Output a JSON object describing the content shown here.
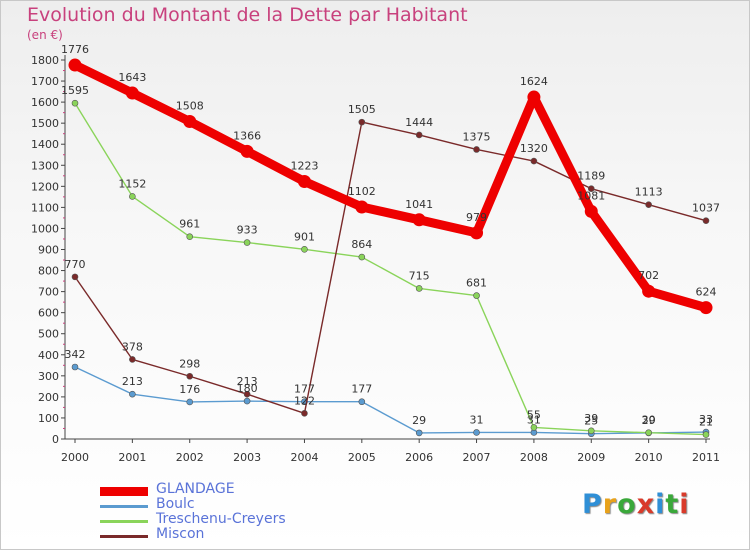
{
  "title": "Evolution du Montant de la Dette par Habitant",
  "unit": "(en €)",
  "logo": {
    "text": "Proxiti",
    "colors": [
      "#2f8fd6",
      "#e8a21b",
      "#3aa83a",
      "#d93a2a",
      "#2f8fd6",
      "#3aa83a",
      "#d93a2a"
    ]
  },
  "chart_data": {
    "type": "line",
    "title": "Evolution du Montant de la Dette par Habitant",
    "ylabel": "(en €)",
    "xlabel": "",
    "x": [
      "2000",
      "2001",
      "2002",
      "2003",
      "2004",
      "2005",
      "2006",
      "2007",
      "2008",
      "2009",
      "2010",
      "2011"
    ],
    "ylim": [
      0,
      1800
    ],
    "yticks": [
      "0",
      "100",
      "200",
      "300",
      "400",
      "500",
      "600",
      "700",
      "800",
      "900",
      "1000",
      "1100",
      "1200",
      "1300",
      "1400",
      "1500",
      "1600",
      "1700",
      "1800"
    ],
    "grid": false,
    "legend_position": "bottom-left",
    "series": [
      {
        "name": "GLANDAGE",
        "color": "#ee0000",
        "emphasis": true,
        "values": [
          1776,
          1643,
          1508,
          1366,
          1223,
          1102,
          1041,
          979,
          1624,
          1081,
          702,
          624
        ],
        "labels": [
          "1776",
          "1643",
          "1508",
          "1366",
          "1223",
          "1102",
          "1041",
          "979",
          "1624",
          "1081",
          "702",
          "624"
        ]
      },
      {
        "name": "Boulc",
        "color": "#5b9bd0",
        "emphasis": false,
        "values": [
          342,
          213,
          176,
          180,
          177,
          177,
          29,
          31,
          31,
          25,
          29,
          33
        ],
        "labels": [
          "342",
          "213",
          "176",
          "180",
          "177",
          "177",
          "29",
          "31",
          "31",
          "25",
          "29",
          "33"
        ]
      },
      {
        "name": "Treschenu-Creyers",
        "color": "#8ad45a",
        "emphasis": false,
        "values": [
          1595,
          1152,
          961,
          933,
          901,
          864,
          715,
          681,
          55,
          39,
          30,
          21
        ],
        "labels": [
          "1595",
          "1152",
          "961",
          "933",
          "901",
          "864",
          "715",
          "681",
          "55",
          "39",
          "30",
          "21"
        ]
      },
      {
        "name": "Miscon",
        "color": "#7a2a2a",
        "emphasis": false,
        "values": [
          770,
          378,
          298,
          213,
          122,
          1505,
          1444,
          1375,
          1320,
          1189,
          1113,
          1037
        ],
        "labels": [
          "770",
          "378",
          "298",
          "213",
          "122",
          "1505",
          "1444",
          "1375",
          "1320",
          "1189",
          "1113",
          "1037"
        ]
      }
    ]
  }
}
